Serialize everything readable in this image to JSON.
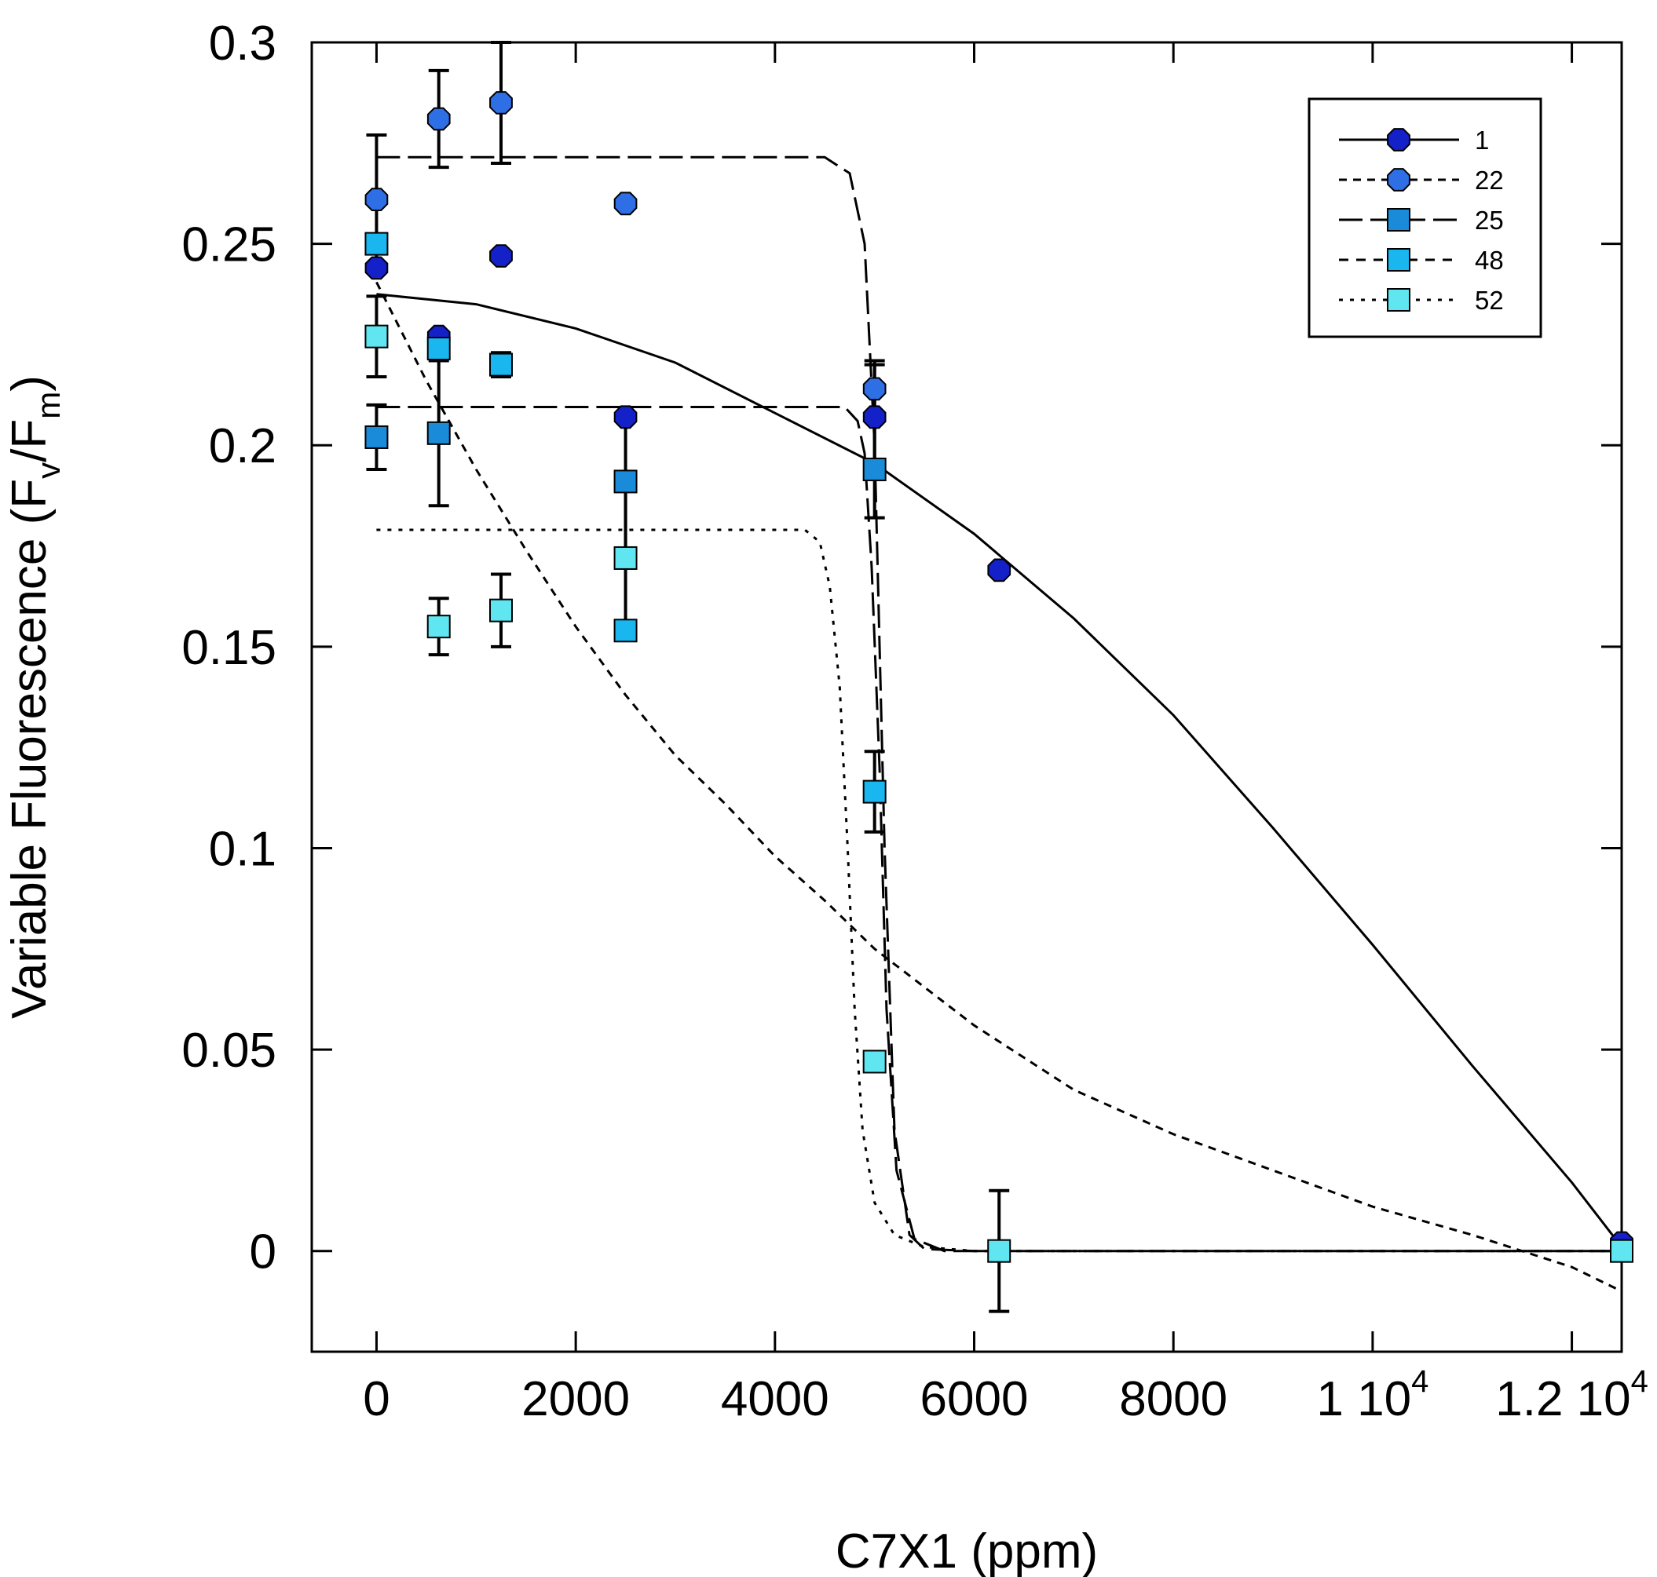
{
  "chart_data": {
    "type": "scatter",
    "xlabel": "C7X1 (ppm)",
    "ylabel": {
      "base": "Variable Fluorescence (F",
      "sub1": "v",
      "mid": "/F",
      "sub2": "m",
      "end": ")"
    },
    "xlim": [
      -650,
      12500
    ],
    "ylim": [
      -0.025,
      0.3
    ],
    "grid": false,
    "legend_position": "top-right",
    "x_ticks": [
      {
        "value": 0,
        "label": "0"
      },
      {
        "value": 2000,
        "label": "2000"
      },
      {
        "value": 4000,
        "label": "4000"
      },
      {
        "value": 6000,
        "label": "6000"
      },
      {
        "value": 8000,
        "label": "8000"
      },
      {
        "value": 10000,
        "label": "1 10",
        "exp": "4"
      },
      {
        "value": 12000,
        "label": "1.2 10",
        "exp": "4"
      }
    ],
    "y_ticks": [
      {
        "value": 0,
        "label": "0"
      },
      {
        "value": 0.05,
        "label": "0.05"
      },
      {
        "value": 0.1,
        "label": "0.1"
      },
      {
        "value": 0.15,
        "label": "0.15"
      },
      {
        "value": 0.2,
        "label": "0.2"
      },
      {
        "value": 0.25,
        "label": "0.25"
      },
      {
        "value": 0.3,
        "label": "0.3"
      }
    ],
    "series": [
      {
        "name": "1",
        "marker": "circle",
        "color": "#1420c8",
        "dash": "solid",
        "points": [
          {
            "x": 0,
            "y": 0.244,
            "err": 0
          },
          {
            "x": 625,
            "y": 0.227,
            "err": 0
          },
          {
            "x": 1250,
            "y": 0.247,
            "err": 0
          },
          {
            "x": 2500,
            "y": 0.207,
            "err": 0
          },
          {
            "x": 5000,
            "y": 0.207,
            "err": 0.013
          },
          {
            "x": 6250,
            "y": 0.169,
            "err": 0
          },
          {
            "x": 12500,
            "y": 0.002,
            "err": 0
          }
        ],
        "fit": [
          [
            0,
            0.2375
          ],
          [
            1000,
            0.235
          ],
          [
            2000,
            0.229
          ],
          [
            3000,
            0.2205
          ],
          [
            4000,
            0.208
          ],
          [
            5000,
            0.1955
          ],
          [
            6000,
            0.178
          ],
          [
            7000,
            0.157
          ],
          [
            8000,
            0.133
          ],
          [
            9000,
            0.105
          ],
          [
            10000,
            0.076
          ],
          [
            11000,
            0.046
          ],
          [
            12000,
            0.017
          ],
          [
            12500,
            0.001
          ]
        ]
      },
      {
        "name": "22",
        "marker": "circle",
        "color": "#2f6fe6",
        "dash": "10,8",
        "points": [
          {
            "x": 0,
            "y": 0.261,
            "err": 0.016
          },
          {
            "x": 625,
            "y": 0.281,
            "err": 0.012
          },
          {
            "x": 1250,
            "y": 0.285,
            "err": 0.015
          },
          {
            "x": 2500,
            "y": 0.26,
            "err": 0
          },
          {
            "x": 5000,
            "y": 0.214,
            "err": 0.007
          }
        ],
        "fit": [
          [
            0,
            0.2405
          ],
          [
            500,
            0.216
          ],
          [
            1000,
            0.194
          ],
          [
            1500,
            0.174
          ],
          [
            2000,
            0.155
          ],
          [
            2500,
            0.138
          ],
          [
            3000,
            0.123
          ],
          [
            3500,
            0.111
          ],
          [
            4000,
            0.098
          ],
          [
            4500,
            0.087
          ],
          [
            5000,
            0.075
          ],
          [
            6000,
            0.056
          ],
          [
            7000,
            0.04
          ],
          [
            8000,
            0.029
          ],
          [
            9000,
            0.02
          ],
          [
            10000,
            0.011
          ],
          [
            11000,
            0.004
          ],
          [
            12000,
            -0.004
          ],
          [
            12500,
            -0.01
          ]
        ]
      },
      {
        "name": "25",
        "marker": "square",
        "color": "#1a8bd8",
        "dash": "30,10",
        "points": [
          {
            "x": 0,
            "y": 0.202,
            "err": 0.008
          },
          {
            "x": 625,
            "y": 0.203,
            "err": 0.018
          },
          {
            "x": 1250,
            "y": 0.22,
            "err": 0
          },
          {
            "x": 2500,
            "y": 0.191,
            "err": 0.017
          },
          {
            "x": 5000,
            "y": 0.194,
            "err": 0.012
          }
        ],
        "fits": [
          [
            [
              0,
              0.2715
            ],
            [
              4500,
              0.2715
            ],
            [
              4750,
              0.2675
            ],
            [
              4900,
              0.25
            ],
            [
              5000,
              0.2
            ],
            [
              5100,
              0.1
            ],
            [
              5200,
              0.03
            ],
            [
              5350,
              0.004
            ],
            [
              5500,
              0.0005
            ],
            [
              6000,
              0
            ],
            [
              12500,
              0
            ]
          ],
          [
            [
              0,
              0.2095
            ],
            [
              4700,
              0.2095
            ],
            [
              4830,
              0.206
            ],
            [
              4900,
              0.198
            ],
            [
              4970,
              0.17
            ],
            [
              5050,
              0.12
            ],
            [
              5120,
              0.06
            ],
            [
              5220,
              0.02
            ],
            [
              5400,
              0.003
            ],
            [
              5700,
              0
            ],
            [
              12500,
              0
            ]
          ]
        ]
      },
      {
        "name": "48",
        "marker": "square",
        "color": "#1ab6ef",
        "dash": "12,10",
        "points": [
          {
            "x": 0,
            "y": 0.25,
            "err": 0
          },
          {
            "x": 625,
            "y": 0.224,
            "err": 0
          },
          {
            "x": 1250,
            "y": 0.22,
            "err": 0.003
          },
          {
            "x": 2500,
            "y": 0.154,
            "err": 0
          },
          {
            "x": 5000,
            "y": 0.114,
            "err": 0.01
          }
        ],
        "fit": []
      },
      {
        "name": "52",
        "marker": "square",
        "color": "#5fe6f0",
        "dash": "5,9",
        "points": [
          {
            "x": 0,
            "y": 0.227,
            "err": 0.01
          },
          {
            "x": 625,
            "y": 0.155,
            "err": 0.007
          },
          {
            "x": 1250,
            "y": 0.159,
            "err": 0.009
          },
          {
            "x": 2500,
            "y": 0.172,
            "err": 0.018
          },
          {
            "x": 5000,
            "y": 0.047,
            "err": 0
          },
          {
            "x": 6250,
            "y": 0.0,
            "err": 0.015
          },
          {
            "x": 12500,
            "y": 0.0,
            "err": 0
          }
        ],
        "fit": [
          [
            0,
            0.179
          ],
          [
            4300,
            0.179
          ],
          [
            4450,
            0.176
          ],
          [
            4550,
            0.165
          ],
          [
            4650,
            0.14
          ],
          [
            4730,
            0.1
          ],
          [
            4800,
            0.06
          ],
          [
            4880,
            0.03
          ],
          [
            5000,
            0.012
          ],
          [
            5200,
            0.004
          ],
          [
            5500,
            0.001
          ],
          [
            6000,
            0
          ],
          [
            12500,
            0
          ]
        ]
      }
    ]
  }
}
